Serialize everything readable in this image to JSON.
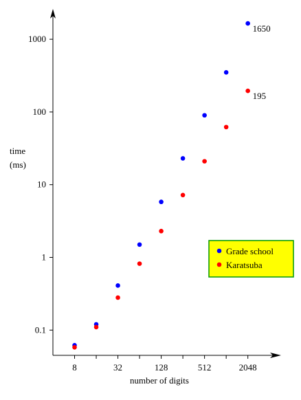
{
  "chart_data": {
    "type": "scatter",
    "xlabel": "number of digits",
    "ylabel": [
      "time",
      "(ms)"
    ],
    "xscale": "log",
    "yscale": "log",
    "xlim": [
      4,
      5800
    ],
    "ylim": [
      0.045,
      2500
    ],
    "xticks": [
      8,
      32,
      128,
      512,
      2048
    ],
    "xminor_ticks": [
      16,
      64,
      256,
      1024
    ],
    "yticks": [
      0.1,
      1,
      10,
      100,
      1000
    ],
    "legend_position": "lower right",
    "x": [
      8,
      16,
      32,
      64,
      128,
      256,
      512,
      1024,
      2048
    ],
    "series": [
      {
        "name": "Grade school",
        "color": "#0000ff",
        "values": [
          0.062,
          0.12,
          0.41,
          1.5,
          5.8,
          23,
          90,
          350,
          1650
        ],
        "value_labels": [
          null,
          null,
          null,
          null,
          null,
          null,
          null,
          null,
          "1650"
        ]
      },
      {
        "name": "Karatsuba",
        "color": "#ff0000",
        "values": [
          0.058,
          0.11,
          0.28,
          0.82,
          2.3,
          7.2,
          21,
          62,
          195
        ],
        "value_labels": [
          null,
          null,
          null,
          null,
          null,
          null,
          null,
          null,
          "195"
        ]
      }
    ]
  }
}
